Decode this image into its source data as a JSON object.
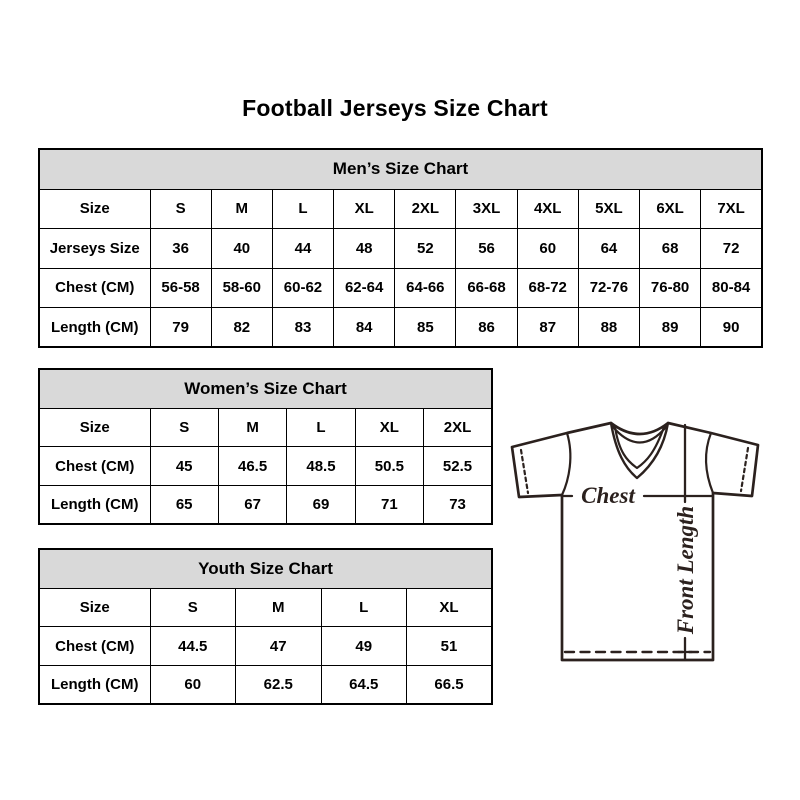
{
  "page": {
    "title": "Football Jerseys Size Chart"
  },
  "colors": {
    "background": "#ffffff",
    "table_header_bg": "#d9d9d9",
    "table_border": "#000000",
    "text": "#000000",
    "jersey_outline": "#2b211e"
  },
  "chart_data": [
    {
      "type": "table",
      "title": "Men’s Size Chart",
      "rows": [
        [
          "Size",
          "S",
          "M",
          "L",
          "XL",
          "2XL",
          "3XL",
          "4XL",
          "5XL",
          "6XL",
          "7XL"
        ],
        [
          "Jerseys Size",
          "36",
          "40",
          "44",
          "48",
          "52",
          "56",
          "60",
          "64",
          "68",
          "72"
        ],
        [
          "Chest (CM)",
          "56-58",
          "58-60",
          "60-62",
          "62-64",
          "64-66",
          "66-68",
          "68-72",
          "72-76",
          "76-80",
          "80-84"
        ],
        [
          "Length (CM)",
          "79",
          "82",
          "83",
          "84",
          "85",
          "86",
          "87",
          "88",
          "89",
          "90"
        ]
      ]
    },
    {
      "type": "table",
      "title": "Women’s Size Chart",
      "rows": [
        [
          "Size",
          "S",
          "M",
          "L",
          "XL",
          "2XL"
        ],
        [
          "Chest (CM)",
          "45",
          "46.5",
          "48.5",
          "50.5",
          "52.5"
        ],
        [
          "Length (CM)",
          "65",
          "67",
          "69",
          "71",
          "73"
        ]
      ]
    },
    {
      "type": "table",
      "title": "Youth Size Chart",
      "rows": [
        [
          "Size",
          "S",
          "M",
          "L",
          "XL"
        ],
        [
          "Chest (CM)",
          "44.5",
          "47",
          "49",
          "51"
        ],
        [
          "Length (CM)",
          "60",
          "62.5",
          "64.5",
          "66.5"
        ]
      ]
    }
  ],
  "diagram": {
    "chest_label": "Chest",
    "front_length_label": "Front Length"
  }
}
